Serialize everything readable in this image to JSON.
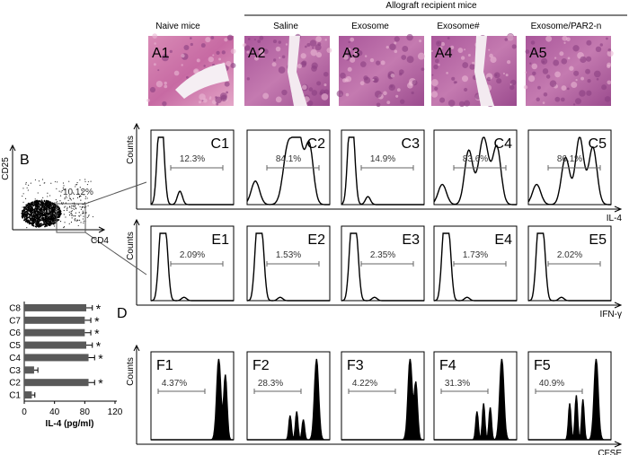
{
  "headers": {
    "group": "Allograft recipient mice",
    "columns": [
      "Naive mice",
      "Saline",
      "Exosome",
      "Exosome#",
      "Exosome/PAR2-n"
    ]
  },
  "panels_a": [
    "A1",
    "A2",
    "A3",
    "A4",
    "A5"
  ],
  "row_c": {
    "axis_y": "Counts",
    "axis_x": "IL-4",
    "panels": [
      {
        "label": "C1",
        "gate": "12.3%"
      },
      {
        "label": "C2",
        "gate": "84.1%"
      },
      {
        "label": "C3",
        "gate": "14.9%"
      },
      {
        "label": "C4",
        "gate": "83.6%"
      },
      {
        "label": "C5",
        "gate": "86.1%"
      }
    ]
  },
  "row_e": {
    "axis_y": "Counts",
    "axis_x": "IFN-γ",
    "panels": [
      {
        "label": "E1",
        "gate": "2.09%"
      },
      {
        "label": "E2",
        "gate": "1.53%"
      },
      {
        "label": "E3",
        "gate": "2.35%"
      },
      {
        "label": "E4",
        "gate": "1.73%"
      },
      {
        "label": "E5",
        "gate": "2.02%"
      }
    ]
  },
  "row_f": {
    "axis_y": "Counts",
    "axis_x": "CFSE",
    "panels": [
      {
        "label": "F1",
        "gate": "4.37%"
      },
      {
        "label": "F2",
        "gate": "28.3%"
      },
      {
        "label": "F3",
        "gate": "4.22%"
      },
      {
        "label": "F4",
        "gate": "31.3%"
      },
      {
        "label": "F5",
        "gate": "40.9%"
      }
    ]
  },
  "panel_b": {
    "label": "B",
    "x_label": "CD4",
    "y_label": "CD25",
    "gate": "10.12%"
  },
  "chart_data": {
    "type": "bar",
    "label": "D",
    "orientation": "horizontal",
    "categories": [
      "C8",
      "C7",
      "C6",
      "C5",
      "C4",
      "C3",
      "C2",
      "C1"
    ],
    "values": [
      82,
      80,
      80,
      82,
      85,
      13,
      85,
      10
    ],
    "errors": [
      8,
      8,
      8,
      8,
      8,
      5,
      8,
      4
    ],
    "annotations": [
      "*",
      "*",
      "*",
      "*",
      "*",
      null,
      "*",
      null
    ],
    "x_label": "IL-4 (pg/ml)",
    "xlim": [
      0,
      120
    ],
    "xticks": [
      0,
      40,
      80,
      120
    ],
    "color": "#595959"
  }
}
